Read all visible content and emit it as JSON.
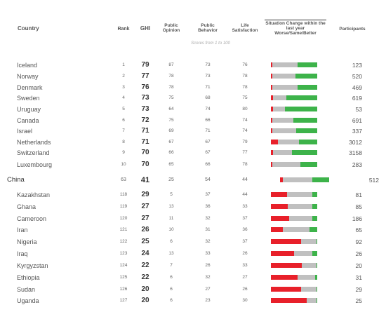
{
  "header": {
    "country": "Country",
    "rank": "Rank",
    "ghi": "GHI",
    "public_opinion": "Public Opinion",
    "public_behavior": "Public Behavior",
    "life_satisfaction": "Life Satisfaction",
    "situation_change": "Situation Change within the last year Worse/Same/Better",
    "participants": "Participants",
    "scores_note": "Scores from 1 to 100"
  },
  "colors": {
    "worse": "#e8202a",
    "same": "#c0c0c0",
    "better": "#3db34a"
  },
  "chart_data": {
    "type": "table",
    "columns": [
      "Country",
      "Rank",
      "GHI",
      "Public Opinion",
      "Public Behavior",
      "Life Satisfaction",
      "Situation Change within the last year Worse/Same/Better",
      "Participants"
    ],
    "rows": [
      {
        "country": "Iceland",
        "rank": "1",
        "ghi": "79",
        "po": "87",
        "pb": "73",
        "ls": "76",
        "worse": 0.03,
        "same": 0.55,
        "better": 0.42,
        "participants": "123"
      },
      {
        "country": "Norway",
        "rank": "2",
        "ghi": "77",
        "po": "78",
        "pb": "73",
        "ls": "78",
        "worse": 0.03,
        "same": 0.5,
        "better": 0.47,
        "participants": "520"
      },
      {
        "country": "Denmark",
        "rank": "3",
        "ghi": "76",
        "po": "78",
        "pb": "71",
        "ls": "78",
        "worse": 0.03,
        "same": 0.55,
        "better": 0.42,
        "participants": "469"
      },
      {
        "country": "Sweden",
        "rank": "4",
        "ghi": "73",
        "po": "75",
        "pb": "68",
        "ls": "75",
        "worse": 0.05,
        "same": 0.28,
        "better": 0.67,
        "participants": "619"
      },
      {
        "country": "Uruguay",
        "rank": "5",
        "ghi": "73",
        "po": "64",
        "pb": "74",
        "ls": "80",
        "worse": 0.05,
        "same": 0.25,
        "better": 0.7,
        "participants": "53"
      },
      {
        "country": "Canada",
        "rank": "6",
        "ghi": "72",
        "po": "75",
        "pb": "66",
        "ls": "74",
        "worse": 0.03,
        "same": 0.45,
        "better": 0.52,
        "participants": "691"
      },
      {
        "country": "Israel",
        "rank": "7",
        "ghi": "71",
        "po": "69",
        "pb": "71",
        "ls": "74",
        "worse": 0.03,
        "same": 0.52,
        "better": 0.45,
        "participants": "337"
      },
      {
        "country": "Netherlands",
        "rank": "8",
        "ghi": "71",
        "po": "67",
        "pb": "67",
        "ls": "79",
        "worse": 0.15,
        "same": 0.45,
        "better": 0.4,
        "participants": "3012"
      },
      {
        "country": "Switzerland",
        "rank": "9",
        "ghi": "70",
        "po": "66",
        "pb": "67",
        "ls": "77",
        "worse": 0.05,
        "same": 0.4,
        "better": 0.55,
        "participants": "3158"
      },
      {
        "country": "Luxembourg",
        "rank": "10",
        "ghi": "70",
        "po": "65",
        "pb": "66",
        "ls": "78",
        "worse": 0.03,
        "same": 0.6,
        "better": 0.37,
        "participants": "283"
      },
      {
        "country": "China",
        "rank": "63",
        "ghi": "41",
        "po": "25",
        "pb": "54",
        "ls": "44",
        "worse": 0.05,
        "same": 0.6,
        "better": 0.35,
        "participants": "512",
        "highlight": true
      },
      {
        "country": "Kazakhstan",
        "rank": "118",
        "ghi": "29",
        "po": "5",
        "pb": "37",
        "ls": "44",
        "worse": 0.35,
        "same": 0.55,
        "better": 0.1,
        "participants": "81"
      },
      {
        "country": "Ghana",
        "rank": "119",
        "ghi": "27",
        "po": "13",
        "pb": "36",
        "ls": "33",
        "worse": 0.37,
        "same": 0.53,
        "better": 0.1,
        "participants": "85"
      },
      {
        "country": "Cameroon",
        "rank": "120",
        "ghi": "27",
        "po": "11",
        "pb": "32",
        "ls": "37",
        "worse": 0.4,
        "same": 0.5,
        "better": 0.1,
        "participants": "186"
      },
      {
        "country": "Iran",
        "rank": "121",
        "ghi": "26",
        "po": "10",
        "pb": "31",
        "ls": "36",
        "worse": 0.25,
        "same": 0.58,
        "better": 0.17,
        "participants": "65"
      },
      {
        "country": "Nigeria",
        "rank": "122",
        "ghi": "25",
        "po": "6",
        "pb": "32",
        "ls": "37",
        "worse": 0.65,
        "same": 0.33,
        "better": 0.02,
        "participants": "92"
      },
      {
        "country": "Iraq",
        "rank": "123",
        "ghi": "24",
        "po": "13",
        "pb": "33",
        "ls": "26",
        "worse": 0.5,
        "same": 0.4,
        "better": 0.1,
        "participants": "26"
      },
      {
        "country": "Kyrgyzstan",
        "rank": "124",
        "ghi": "22",
        "po": "7",
        "pb": "26",
        "ls": "33",
        "worse": 0.67,
        "same": 0.31,
        "better": 0.02,
        "participants": "20"
      },
      {
        "country": "Ethiopia",
        "rank": "125",
        "ghi": "22",
        "po": "6",
        "pb": "32",
        "ls": "27",
        "worse": 0.57,
        "same": 0.38,
        "better": 0.05,
        "participants": "31"
      },
      {
        "country": "Sudan",
        "rank": "126",
        "ghi": "20",
        "po": "6",
        "pb": "27",
        "ls": "26",
        "worse": 0.65,
        "same": 0.33,
        "better": 0.02,
        "participants": "29"
      },
      {
        "country": "Uganda",
        "rank": "127",
        "ghi": "20",
        "po": "6",
        "pb": "23",
        "ls": "30",
        "worse": 0.78,
        "same": 0.2,
        "better": 0.02,
        "participants": "25"
      }
    ]
  }
}
